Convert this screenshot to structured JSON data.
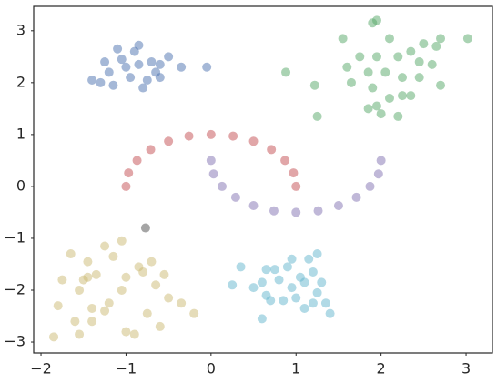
{
  "chart_data": {
    "type": "scatter",
    "xlim": [
      -2.086,
      3.31
    ],
    "ylim": [
      -3.21,
      3.47
    ],
    "xticks": [
      {
        "value": -2,
        "label": "−2"
      },
      {
        "value": -1,
        "label": "−1"
      },
      0,
      1,
      2,
      3
    ],
    "yticks": [
      {
        "value": -3,
        "label": "−3"
      },
      {
        "value": -2,
        "label": "−2"
      },
      {
        "value": -1,
        "label": "−1"
      },
      0,
      1,
      2,
      3
    ],
    "series": [
      {
        "color": "#4c72b0",
        "x": [
          -1.1,
          -0.85,
          -1.25,
          -1.0,
          -0.7,
          -0.6,
          -0.95,
          -1.3,
          -1.15,
          -0.8,
          -0.6,
          -0.35,
          -0.05,
          -1.2,
          -0.75,
          -0.5,
          -1.05,
          -0.85,
          -0.65,
          -1.4,
          -0.9
        ],
        "values": [
          2.65,
          2.72,
          2.4,
          2.3,
          2.4,
          2.35,
          2.1,
          2.0,
          1.95,
          1.9,
          2.1,
          2.3,
          2.3,
          2.2,
          2.05,
          2.5,
          2.45,
          2.35,
          2.2,
          2.05,
          2.6
        ]
      },
      {
        "color": "#55a868",
        "x": [
          1.55,
          1.9,
          1.95,
          2.1,
          2.35,
          2.5,
          2.7,
          3.02,
          1.75,
          1.95,
          2.2,
          2.45,
          2.6,
          2.65,
          1.6,
          1.85,
          2.05,
          2.25,
          2.45,
          2.7,
          1.65,
          1.9,
          2.25,
          2.1,
          1.95,
          2.0,
          2.2,
          0.88,
          1.22,
          1.25,
          1.85,
          2.35
        ],
        "values": [
          2.85,
          3.15,
          3.2,
          2.85,
          2.6,
          2.75,
          2.85,
          2.85,
          2.5,
          2.5,
          2.5,
          2.4,
          2.35,
          2.7,
          2.3,
          2.2,
          2.2,
          2.1,
          2.1,
          1.95,
          2.0,
          1.9,
          1.75,
          1.7,
          1.55,
          1.4,
          1.35,
          2.2,
          1.95,
          1.35,
          1.5,
          1.75
        ]
      },
      {
        "color": "#c44e52",
        "x": [
          1,
          0.97,
          0.87,
          0.71,
          0.5,
          0.26,
          0,
          -0.26,
          -0.5,
          -0.71,
          -0.87,
          -0.97,
          -1
        ],
        "values": [
          0,
          0.26,
          0.5,
          0.71,
          0.87,
          0.97,
          1,
          0.97,
          0.87,
          0.71,
          0.5,
          0.26,
          0
        ]
      },
      {
        "color": "#8172b2",
        "x": [
          0,
          0.03,
          0.13,
          0.29,
          0.5,
          0.74,
          1,
          1.26,
          1.5,
          1.71,
          1.87,
          1.97,
          2
        ],
        "values": [
          0.5,
          0.24,
          0,
          -0.21,
          -0.37,
          -0.47,
          -0.5,
          -0.47,
          -0.37,
          -0.21,
          0,
          0.24,
          0.5
        ]
      },
      {
        "color": "#ccb974",
        "x": [
          -1.85,
          -1.8,
          -1.6,
          -1.55,
          -1.65,
          -1.5,
          -1.45,
          -1.35,
          -1.4,
          -1.4,
          -1.45,
          -1.25,
          -1.2,
          -1.25,
          -1.15,
          -1.05,
          -1.0,
          -1.05,
          -1.0,
          -0.9,
          -0.85,
          -0.8,
          -0.7,
          -0.75,
          -0.65,
          -0.6,
          -0.55,
          -0.5,
          -0.35,
          -0.2,
          -1.55,
          -1.75
        ],
        "values": [
          -2.9,
          -2.3,
          -2.6,
          -2.0,
          -1.3,
          -1.8,
          -1.75,
          -1.7,
          -2.35,
          -2.6,
          -1.45,
          -1.15,
          -2.25,
          -2.4,
          -1.35,
          -1.05,
          -1.75,
          -2.0,
          -2.8,
          -2.85,
          -1.55,
          -1.65,
          -1.45,
          -2.45,
          -1.9,
          -2.7,
          -1.7,
          -2.15,
          -2.25,
          -2.45,
          -2.85,
          -1.8
        ]
      },
      {
        "color": "#64b5cd",
        "x": [
          0.35,
          0.25,
          0.5,
          0.6,
          0.65,
          0.65,
          0.75,
          0.8,
          0.85,
          0.6,
          0.95,
          0.95,
          1.0,
          1.05,
          1.1,
          1.1,
          1.15,
          1.2,
          1.25,
          1.25,
          1.3,
          1.35,
          1.4,
          0.9,
          1.2,
          0.7
        ],
        "values": [
          -1.55,
          -1.9,
          -1.95,
          -1.85,
          -2.1,
          -1.6,
          -1.6,
          -1.8,
          -2.2,
          -2.55,
          -1.4,
          -1.95,
          -2.15,
          -1.75,
          -1.85,
          -2.35,
          -1.4,
          -1.65,
          -1.3,
          -2.05,
          -1.85,
          -2.25,
          -2.45,
          -1.55,
          -2.25,
          -2.2
        ]
      },
      {
        "color": "#4c4c4c",
        "x": [
          -0.77
        ],
        "values": [
          -0.8
        ]
      }
    ]
  }
}
